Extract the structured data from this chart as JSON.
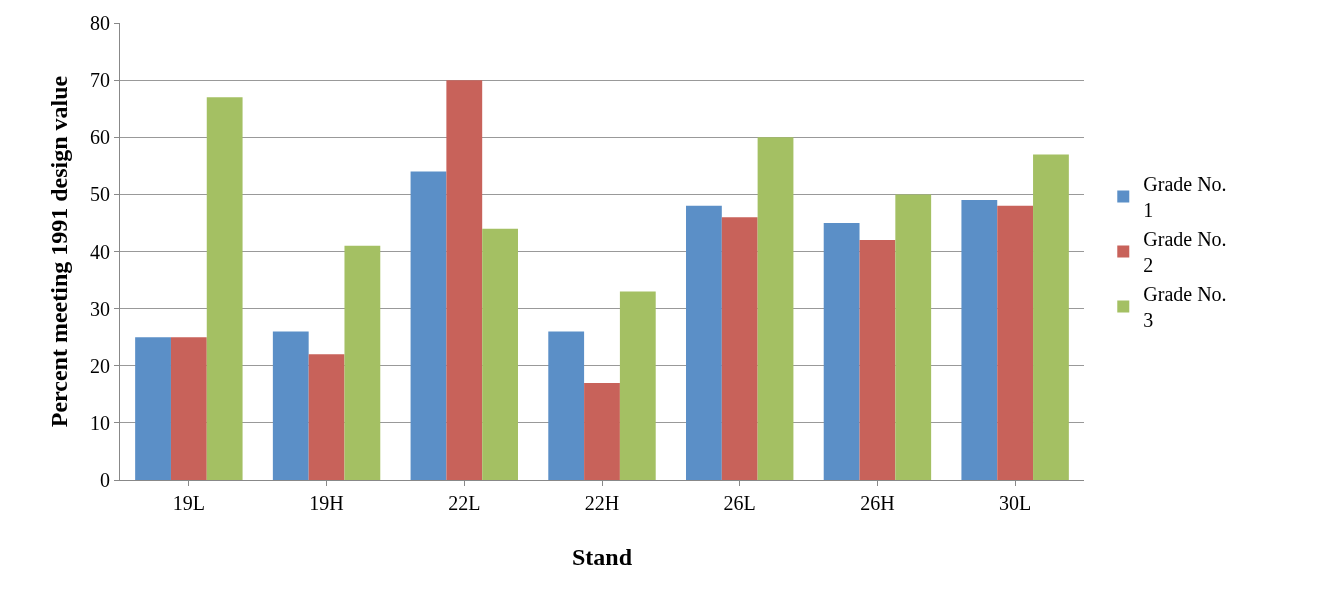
{
  "chart_data": {
    "type": "bar",
    "xlabel": "Stand",
    "ylabel": "Percent meeting 1991 design value",
    "categories": [
      "19L",
      "19H",
      "22L",
      "22H",
      "26L",
      "26H",
      "30L"
    ],
    "series": [
      {
        "name": "Grade No. 1",
        "color": "#5b8fc7",
        "values": [
          25,
          26,
          54,
          26,
          48,
          45,
          49
        ]
      },
      {
        "name": "Grade No. 2",
        "color": "#c8625a",
        "values": [
          25,
          22,
          70,
          17,
          46,
          42,
          48
        ]
      },
      {
        "name": "Grade No. 3",
        "color": "#a4c063",
        "values": [
          67,
          41,
          44,
          33,
          60,
          50,
          57
        ]
      }
    ],
    "ylim": [
      0,
      80
    ],
    "yticks": [
      0,
      10,
      20,
      30,
      40,
      50,
      60,
      70,
      80
    ],
    "grid": "y",
    "legend": "right"
  }
}
